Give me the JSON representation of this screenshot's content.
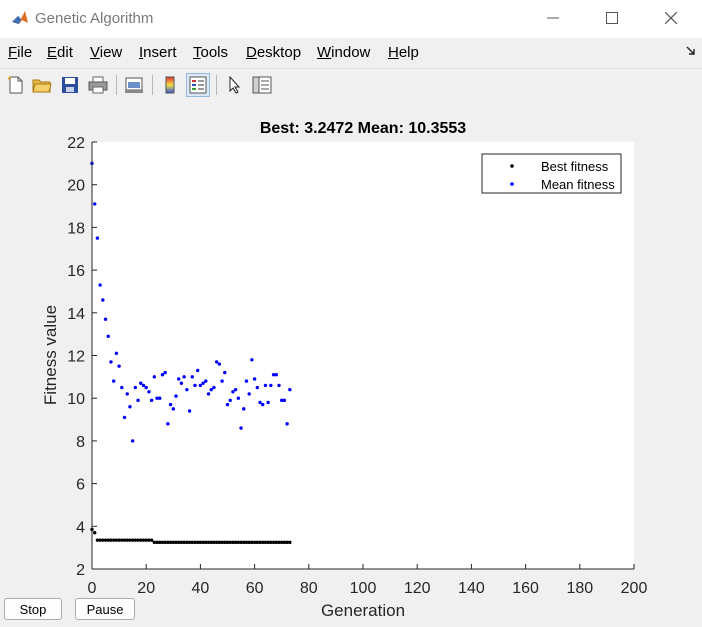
{
  "window": {
    "title": "Genetic Algorithm"
  },
  "menu": {
    "items": [
      {
        "label": "File",
        "mnemonic": "F",
        "rest": "ile"
      },
      {
        "label": "Edit",
        "mnemonic": "E",
        "rest": "dit"
      },
      {
        "label": "View",
        "mnemonic": "V",
        "rest": "iew"
      },
      {
        "label": "Insert",
        "mnemonic": "I",
        "rest": "nsert"
      },
      {
        "label": "Tools",
        "mnemonic": "T",
        "rest": "ools"
      },
      {
        "label": "Desktop",
        "mnemonic": "D",
        "rest": "esktop"
      },
      {
        "label": "Window",
        "mnemonic": "W",
        "rest": "indow"
      },
      {
        "label": "Help",
        "mnemonic": "H",
        "rest": "elp"
      }
    ]
  },
  "toolbar": {
    "icons": [
      "new-figure-icon",
      "open-folder-icon",
      "save-icon",
      "print-icon",
      "link-plot-icon",
      "colorbar-icon",
      "legend-icon",
      "pointer-icon",
      "property-editor-icon"
    ]
  },
  "buttons": {
    "stop_label": "Stop",
    "pause_label": "Pause"
  },
  "chart_data": {
    "type": "scatter",
    "title": "Best: 3.2472 Mean: 10.3553",
    "xlabel": "Generation",
    "ylabel": "Fitness value",
    "xlim": [
      0,
      200
    ],
    "ylim": [
      2,
      22
    ],
    "xticks": [
      0,
      20,
      40,
      60,
      80,
      100,
      120,
      140,
      160,
      180,
      200
    ],
    "yticks": [
      2,
      4,
      6,
      8,
      10,
      12,
      14,
      16,
      18,
      20,
      22
    ],
    "grid": false,
    "legend": {
      "position": "top-right",
      "entries": [
        "Best fitness",
        "Mean fitness"
      ]
    },
    "series": [
      {
        "name": "Best fitness",
        "color": "#000000",
        "x": [
          0,
          1,
          2,
          3,
          4,
          5,
          6,
          7,
          8,
          9,
          10,
          11,
          12,
          13,
          14,
          15,
          16,
          17,
          18,
          19,
          20,
          21,
          22,
          23,
          24,
          25,
          26,
          27,
          28,
          29,
          30,
          31,
          32,
          33,
          34,
          35,
          36,
          37,
          38,
          39,
          40,
          41,
          42,
          43,
          44,
          45,
          46,
          47,
          48,
          49,
          50,
          51,
          52,
          53,
          54,
          55,
          56,
          57,
          58,
          59,
          60,
          61,
          62,
          63,
          64,
          65,
          66,
          67,
          68,
          69,
          70,
          71,
          72,
          73
        ],
        "y": [
          3.85,
          3.7,
          3.35,
          3.35,
          3.35,
          3.35,
          3.35,
          3.35,
          3.35,
          3.35,
          3.35,
          3.35,
          3.35,
          3.35,
          3.35,
          3.35,
          3.35,
          3.35,
          3.35,
          3.35,
          3.35,
          3.35,
          3.35,
          3.25,
          3.25,
          3.25,
          3.25,
          3.25,
          3.25,
          3.25,
          3.25,
          3.25,
          3.25,
          3.25,
          3.25,
          3.25,
          3.25,
          3.25,
          3.25,
          3.25,
          3.25,
          3.25,
          3.25,
          3.25,
          3.25,
          3.25,
          3.25,
          3.25,
          3.25,
          3.25,
          3.25,
          3.25,
          3.25,
          3.25,
          3.25,
          3.25,
          3.25,
          3.25,
          3.25,
          3.25,
          3.25,
          3.25,
          3.25,
          3.25,
          3.25,
          3.25,
          3.25,
          3.25,
          3.25,
          3.25,
          3.25,
          3.25,
          3.25,
          3.25
        ]
      },
      {
        "name": "Mean fitness",
        "color": "#0000ff",
        "x": [
          0,
          1,
          2,
          3,
          4,
          5,
          6,
          7,
          8,
          9,
          10,
          11,
          12,
          13,
          14,
          15,
          16,
          17,
          18,
          19,
          20,
          21,
          22,
          23,
          24,
          25,
          26,
          27,
          28,
          29,
          30,
          31,
          32,
          33,
          34,
          35,
          36,
          37,
          38,
          39,
          40,
          41,
          42,
          43,
          44,
          45,
          46,
          47,
          48,
          49,
          50,
          51,
          52,
          53,
          54,
          55,
          56,
          57,
          58,
          59,
          60,
          61,
          62,
          63,
          64,
          65,
          66,
          67,
          68,
          69,
          70,
          71,
          72,
          73
        ],
        "y": [
          21.0,
          19.1,
          17.5,
          15.3,
          14.6,
          13.7,
          12.9,
          11.7,
          10.8,
          12.1,
          11.5,
          10.5,
          9.1,
          10.2,
          9.6,
          8.0,
          10.5,
          9.9,
          10.7,
          10.6,
          10.5,
          10.3,
          9.9,
          11.0,
          10.0,
          10.0,
          11.1,
          11.2,
          8.8,
          9.7,
          9.5,
          10.1,
          10.9,
          10.7,
          11.0,
          10.4,
          9.4,
          11.0,
          10.6,
          11.3,
          10.6,
          10.7,
          10.8,
          10.2,
          10.4,
          10.5,
          11.7,
          11.6,
          10.8,
          11.2,
          9.7,
          9.9,
          10.3,
          10.4,
          10.0,
          8.6,
          9.5,
          10.8,
          10.2,
          11.8,
          10.9,
          10.5,
          9.8,
          9.7,
          10.6,
          9.8,
          10.6,
          11.1,
          11.1,
          10.6,
          9.9,
          9.9,
          8.8,
          10.4
        ]
      }
    ]
  }
}
